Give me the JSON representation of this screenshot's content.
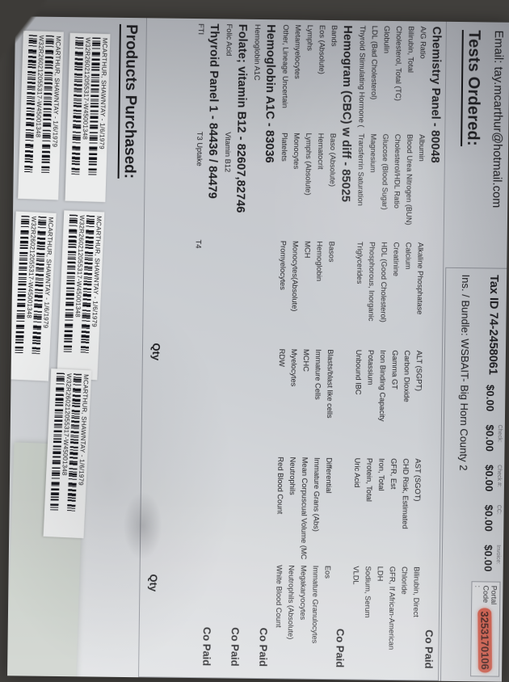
{
  "header": {
    "email": "Email: tay.mcarthur@hotmail.com",
    "tax_id": "Tax ID 74-2458061",
    "payments": [
      {
        "label": "",
        "value": "$0.00"
      },
      {
        "label": "Check:",
        "value": "$0.00"
      },
      {
        "label": "Check #:",
        "value": "$0.00"
      },
      {
        "label": "CC:",
        "value": "$0.00"
      },
      {
        "label": "Invoice:",
        "value": "$0.00"
      }
    ],
    "portal_label": "Portal\nCode :",
    "portal_code": "3253170106",
    "ins_bundle": "Ins. / Bundle: WSBAIT- Big Horn County 2"
  },
  "colors": {
    "portal_highlight": "#d95743"
  },
  "tests_ordered": {
    "heading": "Tests Ordered:",
    "qty_labels": [
      "Qty",
      "Qty"
    ],
    "sections": [
      {
        "title": "Chemistry Panel - 80048",
        "co_paid": "Co Paid",
        "columns": [
          [
            "A/G Ratio",
            "Bilirubin, Total",
            "Cholesterol, Total (TC)",
            "Globulin",
            "LDL (Bad Cholesterol)",
            "Thyroid Stimulating Hormone ("
          ],
          [
            "Albumin",
            "Blood Urea Nitrogen (BUN)",
            "Cholesterol/HDL Ratio",
            "Glucose (Blood Sugar)",
            "Magnesium",
            "Transferrin Saturation"
          ],
          [
            "Alkaline Phosphatase",
            "Calcium",
            "Creatinine",
            "HDL (Good Cholesterol)",
            "Phosphorous, Inorganic",
            "Triglycerides"
          ],
          [
            "ALT (SGPT)",
            "Carbon Dioxide",
            "Gamma GT",
            "Iron Binding Capacity",
            "Potassium",
            "Unbound IBC"
          ],
          [
            "AST (SGOT)",
            "CHD Risk, Estimated",
            "GFR, Est",
            "Iron, Total",
            "Protein, Total",
            "Uric Acid"
          ],
          [
            "Bilirubin, Direct",
            "Chloride",
            "GFR, If African-American",
            "LDH",
            "Sodium, Serum",
            "VLDL"
          ]
        ]
      },
      {
        "title": "Hemogram (CBC) w diff - 85025",
        "co_paid": "Co Paid",
        "columns": [
          [
            "Bands",
            "Eos (Absolute)",
            "Lymphs",
            "Metamyelocytes",
            "Other, Lineage Uncertain"
          ],
          [
            "Baso (Absolute)",
            "Hematocrit",
            "Lymphs (Absolute)",
            "Monocytes",
            "Platelets"
          ],
          [
            "Basos",
            "Hemoglobin",
            "MCH",
            "Monocytes(Absolute)",
            "Promyelocytes"
          ],
          [
            "Blasts/blast like cells",
            "Immature Cells",
            "MCHC",
            "Myelocytes",
            "RDW"
          ],
          [
            "Differential",
            "Immature Grans (Abs)",
            "Mean Corpuscual Volume (MC",
            "Neutrophils",
            "Red Blood Count"
          ],
          [
            "Eos",
            "Immature Granulocytes",
            "Megakaryocytes",
            "Neutrophils (Absolute)",
            "White Blood Count"
          ]
        ]
      },
      {
        "title": "Hemoglobin A1C - 83036",
        "co_paid": "Co Paid",
        "columns": [
          [
            "Hemoglobin A1C"
          ]
        ]
      },
      {
        "title": "Folate; vitamin B12 - 82607,82746",
        "co_paid": "Co Paid",
        "columns": [
          [
            "Folic Acid"
          ],
          [
            "Vitamin B12"
          ]
        ]
      },
      {
        "title": "Thyroid Panel 1 - 84436 / 84479",
        "co_paid": "Co Paid",
        "columns": [
          [
            "FTI"
          ],
          [
            "T3 Uptake"
          ],
          [
            "T4"
          ]
        ]
      }
    ]
  },
  "products": {
    "heading": "Products Purchased:"
  },
  "stickers": {
    "name_line": "MCARTHUR, SHAWNTAY - 1/6/1979",
    "code_line": "W32R260212055317-W45001348"
  }
}
